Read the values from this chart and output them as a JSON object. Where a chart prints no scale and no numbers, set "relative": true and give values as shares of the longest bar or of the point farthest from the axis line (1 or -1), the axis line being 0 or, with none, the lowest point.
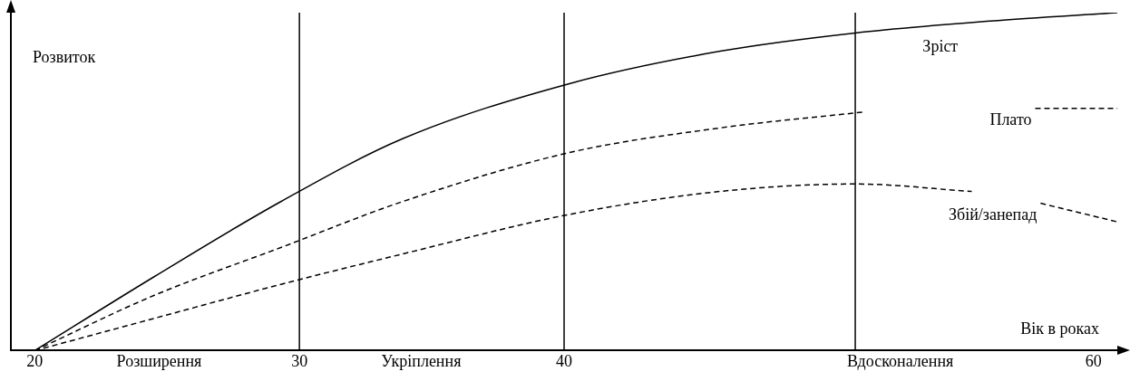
{
  "chart_data": {
    "type": "line",
    "relative": true,
    "xlabel": "Вік в роках",
    "ylabel": "Розвиток",
    "xlim": [
      19.1,
      60.9
    ],
    "xticks": [
      20,
      {
        "value": 24.7,
        "label": "Розширення"
      },
      30,
      {
        "value": 34.6,
        "label": "Укріплення"
      },
      40,
      {
        "value": 52.7,
        "label": "Вдосконалення"
      },
      60
    ],
    "series": [
      {
        "name": "Зріст",
        "color": "#000000",
        "line_style": "solid",
        "x": [
          20,
          24.5,
          29.3,
          33.9,
          40.2,
          45.9,
          51,
          56.1,
          60.9
        ],
        "values": [
          0,
          0.218,
          0.441,
          0.627,
          0.79,
          0.886,
          0.94,
          0.975,
          1
        ]
      },
      {
        "name": "Плато",
        "color": "#000000",
        "line_style": "dashed",
        "x": [
          20,
          24.5,
          29.3,
          33.9,
          40.2,
          45.9,
          51.3,
          54.5,
          57.8,
          60.9
        ],
        "values": [
          0,
          0.163,
          0.305,
          0.441,
          0.586,
          0.659,
          0.706,
          null,
          0.717,
          0.717
        ]
      },
      {
        "name": "Збій/занепад",
        "color": "#000000",
        "line_style": "dashed",
        "x": [
          20,
          24.5,
          29.3,
          33.9,
          40.2,
          45.9,
          51,
          55.4,
          57,
          58,
          60.9
        ],
        "values": [
          0,
          0.095,
          0.196,
          0.286,
          0.403,
          0.471,
          0.493,
          0.471,
          null,
          0.436,
          0.381
        ]
      }
    ],
    "ref_lines": [
      {
        "axis": "x",
        "value": 30,
        "color": "#000000"
      },
      {
        "axis": "x",
        "value": 40,
        "color": "#000000"
      },
      {
        "axis": "x",
        "value": 51,
        "color": "#000000"
      }
    ],
    "grid": false,
    "legend": false,
    "marker": "none"
  }
}
